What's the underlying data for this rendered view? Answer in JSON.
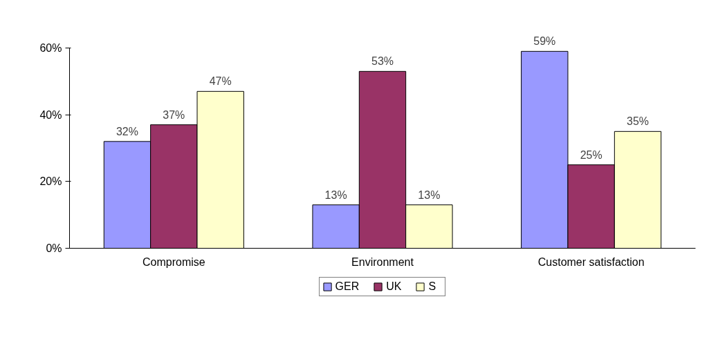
{
  "chart_data": {
    "type": "bar",
    "categories": [
      "Compromise",
      "Environment",
      "Customer satisfaction"
    ],
    "series": [
      {
        "name": "GER",
        "color": "#9999ff",
        "values": [
          32,
          13,
          59
        ],
        "value_labels": [
          "32%",
          "13%",
          "59%"
        ]
      },
      {
        "name": "UK",
        "color": "#993366",
        "values": [
          37,
          53,
          25
        ],
        "value_labels": [
          "37%",
          "53%",
          "25%"
        ]
      },
      {
        "name": "S",
        "color": "#ffffcc",
        "values": [
          47,
          13,
          35
        ],
        "value_labels": [
          "47%",
          "13%",
          "35%"
        ]
      }
    ],
    "ylim": [
      0,
      60
    ],
    "yticks": [
      {
        "value": 0,
        "label": "0%"
      },
      {
        "value": 20,
        "label": "20%"
      },
      {
        "value": 40,
        "label": "40%"
      },
      {
        "value": 60,
        "label": "60%"
      }
    ],
    "grid": false,
    "legend": "bottom"
  }
}
